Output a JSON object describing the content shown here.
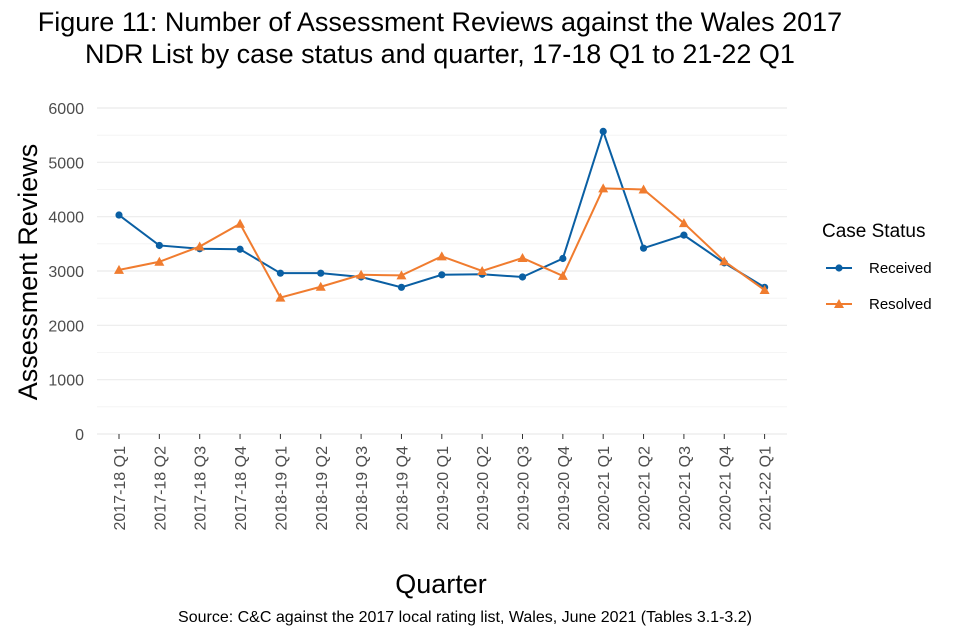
{
  "chart_data": {
    "type": "line",
    "title_line1": "Figure 11: Number of Assessment Reviews against the Wales 2017",
    "title_line2": "NDR List by case status and quarter, 17-18 Q1 to 21-22 Q1",
    "xlabel": "Quarter",
    "ylabel": "Assessment Reviews",
    "ylim": [
      0,
      6000
    ],
    "yticks": [
      0,
      1000,
      2000,
      3000,
      4000,
      5000,
      6000
    ],
    "grid": true,
    "legend": {
      "title": "Case Status",
      "position": "right"
    },
    "categories": [
      "2017-18 Q1",
      "2017-18 Q2",
      "2017-18 Q3",
      "2017-18 Q4",
      "2018-19 Q1",
      "2018-19 Q2",
      "2018-19 Q3",
      "2018-19 Q4",
      "2019-20 Q1",
      "2019-20 Q2",
      "2019-20 Q3",
      "2019-20 Q4",
      "2020-21 Q1",
      "2020-21 Q2",
      "2020-21 Q3",
      "2020-21 Q4",
      "2021-22 Q1"
    ],
    "series": [
      {
        "name": "Received",
        "color": "#0a5fa3",
        "marker": "circle",
        "values": [
          4030,
          3470,
          3410,
          3400,
          2960,
          2960,
          2890,
          2700,
          2930,
          2940,
          2890,
          3230,
          5570,
          3420,
          3660,
          3150,
          2700
        ]
      },
      {
        "name": "Resolved",
        "color": "#f07c2f",
        "marker": "triangle",
        "values": [
          3020,
          3170,
          3450,
          3870,
          2510,
          2710,
          2930,
          2920,
          3270,
          3000,
          3240,
          2910,
          4520,
          4500,
          3880,
          3180,
          2650
        ]
      }
    ],
    "source": "Source: C&C against the 2017 local rating list, Wales, June 2021 (Tables 3.1-3.2)"
  }
}
